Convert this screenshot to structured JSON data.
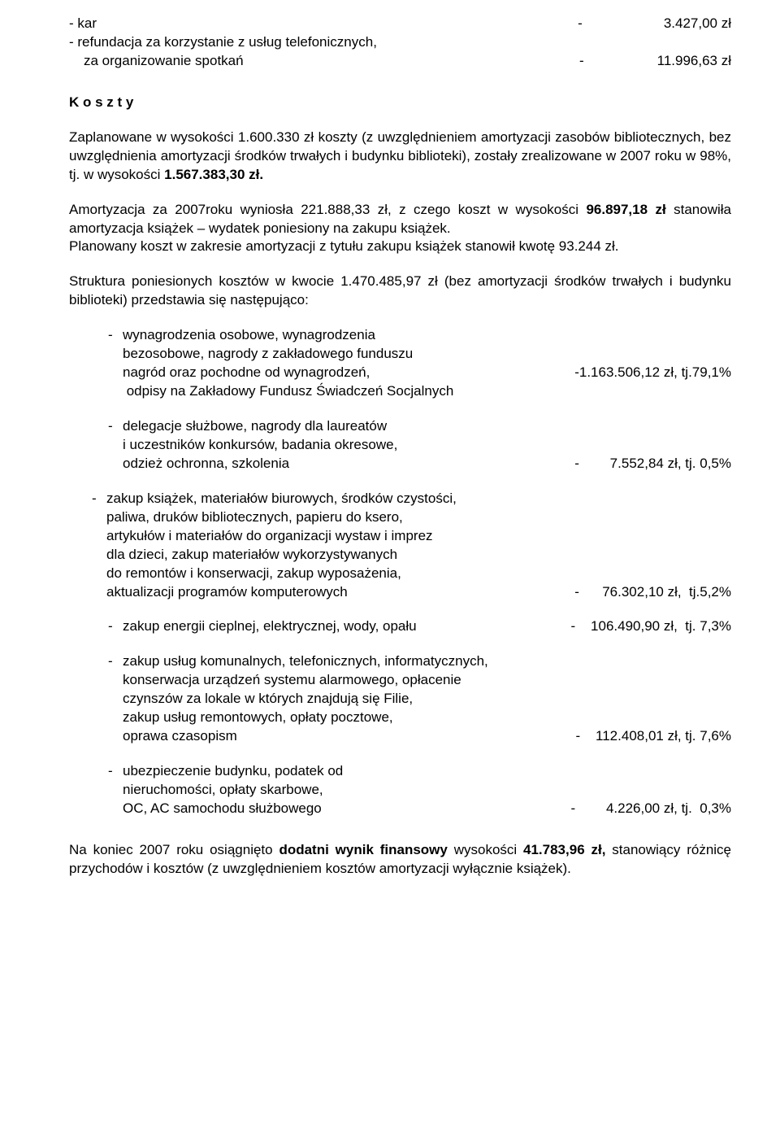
{
  "top": {
    "line1_left": "-  kar",
    "line1_sep": "-",
    "line1_right": "3.427,00 zł",
    "line2": "-  refundacja za korzystanie z usług telefonicznych,",
    "line3_left": "za organizowanie spotkań",
    "line3_sep": "-",
    "line3_right": "11.996,63 zł"
  },
  "heading1": "K o s z t y",
  "p1": "Zaplanowane w wysokości 1.600.330 zł koszty (z uwzględnieniem amortyzacji zasobów bibliotecznych, bez uwzględnienia amortyzacji środków trwałych i budynku biblioteki), zostały zrealizowane w 2007 roku w 98%, tj. w wysokości ",
  "p1_bold": "1.567.383,30 zł.",
  "p2_a": "Amortyzacja za 2007roku wyniosła 221.888,33 zł, z czego koszt w wysokości ",
  "p2_bold": "96.897,18 zł",
  "p2_b": " stanowiła amortyzacja książek – wydatek poniesiony na  zakupu książek.",
  "p2_c": "Planowany koszt w zakresie amortyzacji z tytułu zakupu książek stanowił kwotę 93.244 zł.",
  "p3": "Struktura poniesionych kosztów w kwocie 1.470.485,97 zł (bez amortyzacji środków trwałych i budynku biblioteki) przedstawia się następująco:",
  "items": [
    {
      "lines": [
        "wynagrodzenia  osobowe, wynagrodzenia",
        "bezosobowe, nagrody z zakładowego funduszu",
        "nagród oraz pochodne od  wynagrodzeń,"
      ],
      "value": "-1.163.506,12 zł, tj.79,1%",
      "after": "odpisy na Zakładowy Fundusz Świadczeń Socjalnych"
    },
    {
      "lines": [
        "delegacje służbowe, nagrody  dla laureatów",
        "i uczestników konkursów, badania okresowe,",
        "odzież ochronna, szkolenia"
      ],
      "value": "-        7.552,84 zł, tj. 0,5%"
    },
    {
      "lines": [
        "zakup książek, materiałów biurowych,  środków czystości,",
        "paliwa, druków bibliotecznych, papieru do ksero,",
        "artykułów i materiałów do organizacji wystaw i imprez",
        "dla dzieci,  zakup materiałów  wykorzystywanych",
        "do remontów i  konserwacji,  zakup  wyposażenia,",
        "aktualizacji programów komputerowych"
      ],
      "value": "-      76.302,10 zł,  tj.5,2%",
      "style": "alt"
    },
    {
      "lines": [
        "zakup energii cieplnej, elektrycznej, wody, opału"
      ],
      "value": "-    106.490,90 zł,  tj. 7,3%"
    },
    {
      "lines": [
        "zakup usług komunalnych, telefonicznych, informatycznych,",
        "konserwacja  urządzeń systemu  alarmowego, opłacenie",
        "czynszów  za  lokale  w  których znajdują  się  Filie,",
        "zakup usług remontowych, opłaty pocztowe,",
        "oprawa czasopism"
      ],
      "value": "-    112.408,01 zł, tj. 7,6%"
    },
    {
      "lines": [
        "ubezpieczenie  budynku, podatek od",
        "nieruchomości,  opłaty skarbowe,",
        "OC, AC samochodu służbowego"
      ],
      "value": "-        4.226,00 zł, tj.  0,3%"
    }
  ],
  "final_a": "Na koniec 2007 roku osiągnięto ",
  "final_bold1": "dodatni wynik finansowy",
  "final_b": " wysokości ",
  "final_bold2": "41.783,96 zł,",
  "final_c": " stanowiący różnicę przychodów i kosztów (z uwzględnieniem kosztów amortyzacji wyłącznie książek)."
}
